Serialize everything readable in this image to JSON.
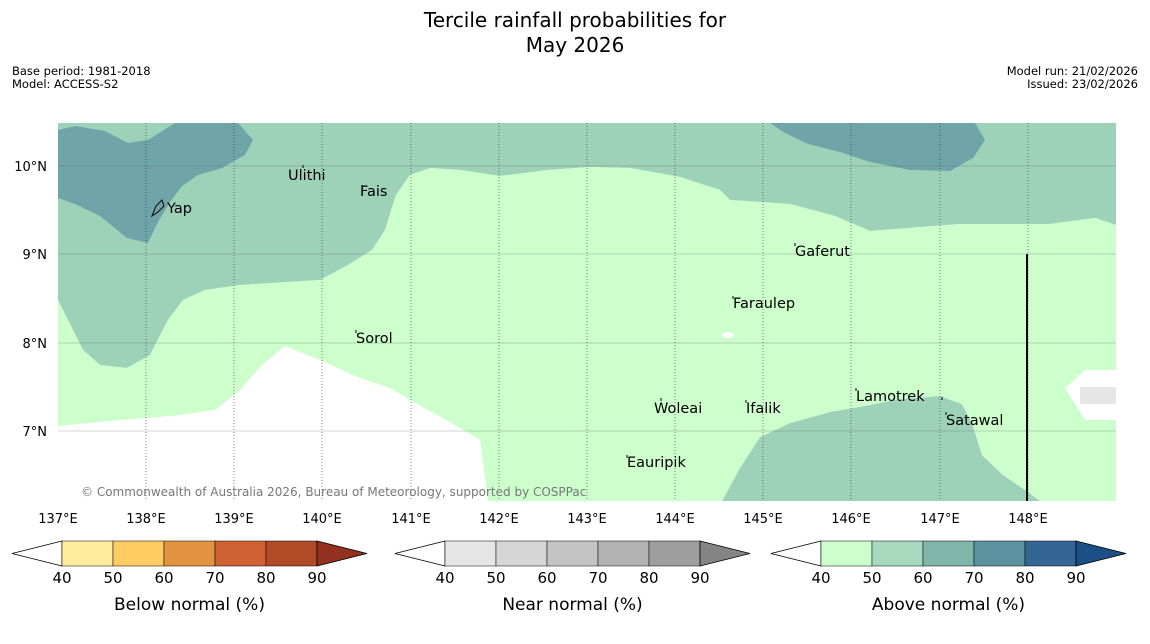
{
  "title": {
    "line1": "Tercile rainfall probabilities for",
    "line2": "May 2026"
  },
  "meta_left": {
    "base_period": "Base period: 1981-2018",
    "model": "Model: ACCESS-S2"
  },
  "meta_right": {
    "model_run": "Model run: 21/02/2026",
    "issued": "Issued: 23/02/2026"
  },
  "map": {
    "lon_ticks": [
      "137°E",
      "138°E",
      "139°E",
      "140°E",
      "141°E",
      "142°E",
      "143°E",
      "144°E",
      "145°E",
      "146°E",
      "147°E",
      "148°E"
    ],
    "lat_ticks": [
      "10°N",
      "9°N",
      "8°N",
      "7°N"
    ],
    "places": {
      "yap": "Yap",
      "ulithi": "Ulithi",
      "fais": "Fais",
      "gaferut": "Gaferut",
      "faraulep": "Faraulep",
      "sorol": "Sorol",
      "woleai": "Woleai",
      "ifalik": "Ifalik",
      "lamotrek": "Lamotrek",
      "satawal": "Satawal",
      "eauripik": "Eauripik"
    },
    "copyright": "© Commonwealth of Australia 2026, Bureau of Meteorology, supported by COSPPac",
    "colors": {
      "above_50_60": "#ccffcc",
      "above_60_70": "#9ed2b8",
      "above_70_80": "#6fa5a8",
      "near_40_50": "#e6e6e6"
    }
  },
  "legends": {
    "below": {
      "title": "Below normal (%)",
      "ticks": [
        "40",
        "50",
        "60",
        "70",
        "80",
        "90"
      ],
      "colors": [
        "#ffeb9c",
        "#ffcb63",
        "#e29441",
        "#cf6031",
        "#b04a27",
        "#94301f"
      ]
    },
    "near": {
      "title": "Near normal (%)",
      "ticks": [
        "40",
        "50",
        "60",
        "70",
        "80",
        "90"
      ],
      "colors": [
        "#e6e6e6",
        "#d6d6d6",
        "#c4c4c4",
        "#b2b2b2",
        "#9e9e9e",
        "#848484"
      ]
    },
    "above": {
      "title": "Above normal (%)",
      "ticks": [
        "40",
        "50",
        "60",
        "70",
        "80",
        "90"
      ],
      "colors": [
        "#ccffcc",
        "#a6d9bd",
        "#80b5aa",
        "#5b92a0",
        "#346595",
        "#1b4f86"
      ]
    }
  }
}
